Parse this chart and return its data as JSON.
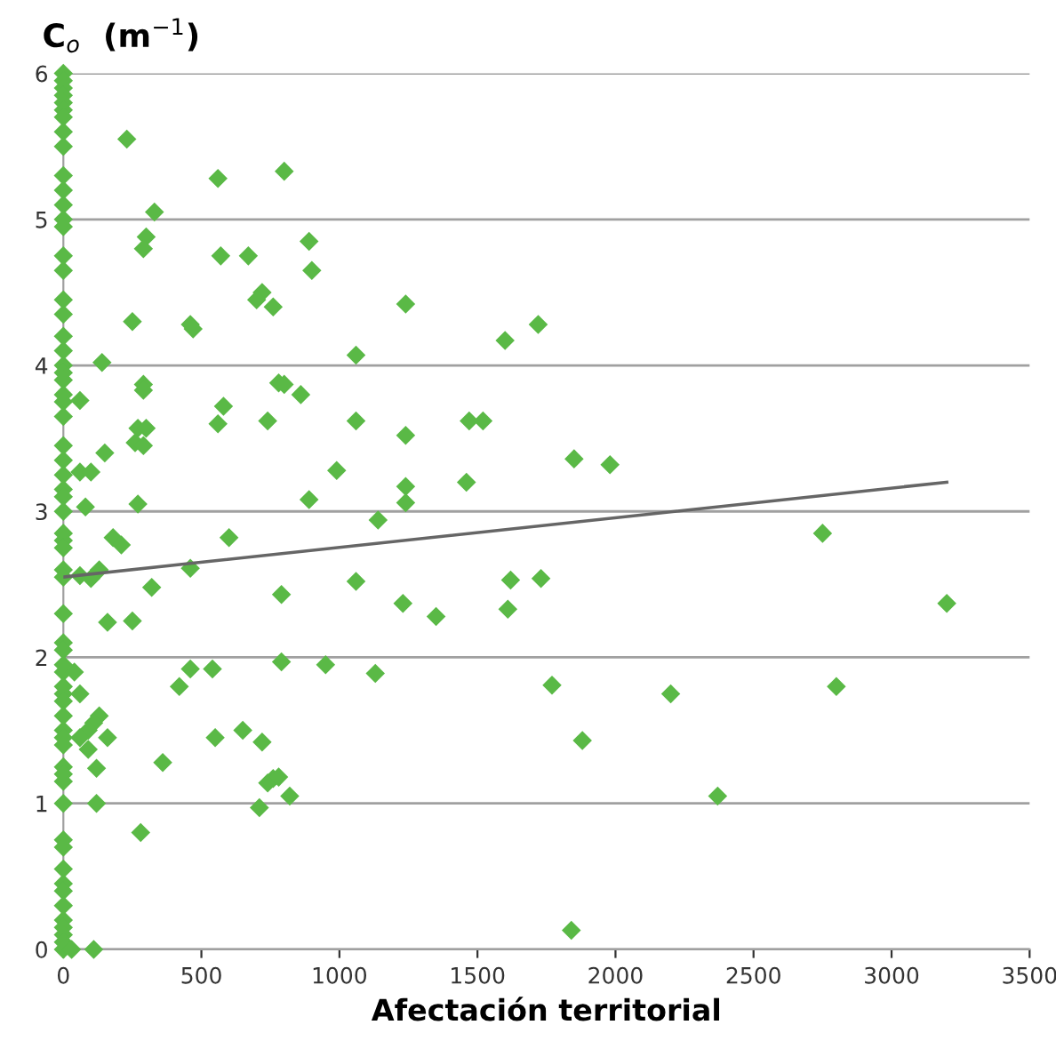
{
  "chart_data": {
    "type": "scatter",
    "title": "C$_{o}$  (m$^{−1}$)",
    "xlabel": "Afectación territorial",
    "xlim": [
      0,
      3500
    ],
    "xticks": [
      0,
      500,
      1000,
      1500,
      2000,
      2500,
      3000,
      3500
    ],
    "ylim": [
      0,
      6
    ],
    "yticks": [
      0,
      1,
      2,
      3,
      4,
      5,
      6
    ],
    "grid": "y",
    "marker": "diamond",
    "series": [
      {
        "color": "#5ab946",
        "x": [
          0,
          0,
          0,
          0,
          0,
          0,
          0,
          0,
          0,
          0,
          0,
          0,
          0,
          0,
          0,
          0,
          0,
          0,
          0,
          0,
          0,
          0,
          0,
          0,
          0,
          0,
          0,
          0,
          0,
          0,
          0,
          0,
          0,
          0,
          0,
          0,
          0,
          0,
          0,
          0,
          0,
          0,
          0,
          0,
          0,
          0,
          0,
          0,
          0,
          0,
          0,
          0,
          0,
          0,
          0,
          0,
          0,
          0,
          0,
          0,
          0,
          0,
          0,
          0,
          230,
          560,
          800,
          330,
          300,
          290,
          570,
          670,
          890,
          900,
          720,
          700,
          760,
          250,
          460,
          470,
          1240,
          1600,
          1720,
          1060,
          140,
          290,
          290,
          780,
          800,
          860,
          580,
          560,
          740,
          1060,
          1470,
          1520,
          1240,
          60,
          270,
          260,
          300,
          290,
          150,
          60,
          100,
          990,
          1460,
          1240,
          1240,
          1850,
          1980,
          890,
          1140,
          270,
          80,
          180,
          210,
          600,
          130,
          60,
          100,
          460,
          320,
          1060,
          1620,
          1730,
          2750,
          3200,
          790,
          1230,
          1350,
          1610,
          160,
          250,
          40,
          460,
          540,
          790,
          950,
          1130,
          420,
          1770,
          2800,
          2200,
          1880,
          60,
          130,
          110,
          90,
          60,
          160,
          90,
          120,
          360,
          550,
          650,
          720,
          760,
          740,
          780,
          820,
          710,
          120,
          2370,
          280,
          1840,
          110,
          30
        ],
        "values": [
          6,
          5.95,
          5.9,
          5.85,
          5.8,
          5.75,
          5.7,
          5.6,
          5.5,
          5.3,
          5.2,
          5.1,
          5.0,
          4.95,
          4.75,
          4.65,
          4.45,
          4.35,
          4.2,
          4.1,
          4.0,
          3.95,
          3.9,
          3.8,
          3.75,
          3.65,
          3.45,
          3.35,
          3.25,
          3.15,
          3.1,
          3.0,
          2.85,
          2.8,
          2.75,
          2.6,
          2.55,
          2.3,
          2.1,
          2.05,
          1.95,
          1.9,
          1.8,
          1.75,
          1.7,
          1.6,
          1.5,
          1.45,
          1.4,
          1.25,
          1.2,
          1.15,
          1.0,
          0.75,
          0.7,
          0.55,
          0.45,
          0.4,
          0.3,
          0.2,
          0.15,
          0.1,
          0.05,
          0,
          5.55,
          5.28,
          5.33,
          5.05,
          4.88,
          4.8,
          4.75,
          4.75,
          4.85,
          4.65,
          4.5,
          4.45,
          4.4,
          4.3,
          4.28,
          4.25,
          4.42,
          4.17,
          4.28,
          4.07,
          4.02,
          3.87,
          3.83,
          3.88,
          3.87,
          3.8,
          3.72,
          3.6,
          3.62,
          3.62,
          3.62,
          3.62,
          3.52,
          3.76,
          3.57,
          3.47,
          3.57,
          3.45,
          3.4,
          3.27,
          3.27,
          3.28,
          3.2,
          3.17,
          3.06,
          3.36,
          3.32,
          3.08,
          2.94,
          3.05,
          3.03,
          2.82,
          2.77,
          2.82,
          2.6,
          2.56,
          2.54,
          2.61,
          2.48,
          2.52,
          2.53,
          2.54,
          2.85,
          2.37,
          2.43,
          2.37,
          2.28,
          2.33,
          2.24,
          2.25,
          1.9,
          1.92,
          1.92,
          1.97,
          1.95,
          1.89,
          1.8,
          1.81,
          1.8,
          1.75,
          1.43,
          1.75,
          1.6,
          1.55,
          1.5,
          1.45,
          1.45,
          1.37,
          1.24,
          1.28,
          1.45,
          1.5,
          1.42,
          1.17,
          1.14,
          1.18,
          1.05,
          0.97,
          1.0,
          1.05,
          0.8,
          0.13,
          0,
          0
        ]
      },
      {
        "type": "line",
        "color": "#666666",
        "marker": "none",
        "x": [
          0,
          3200
        ],
        "values": [
          2.55,
          3.2
        ]
      }
    ]
  }
}
